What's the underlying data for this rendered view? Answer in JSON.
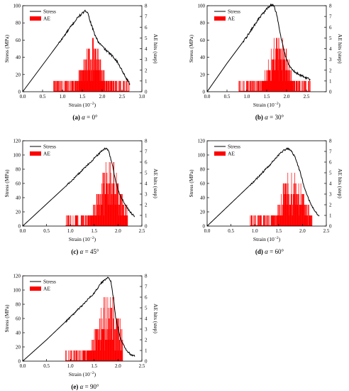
{
  "chart_data": [
    {
      "type": "line",
      "caption": "(a) α = 0°",
      "caption_parts": [
        "(a) ",
        "α",
        " = 0°"
      ],
      "xlabel": "Strain (10",
      "xlabel_sup": "−2",
      "xlabel_end": ")",
      "ylabel": "Stress (MPa)",
      "y2label": "AE hits (step)",
      "xlim": [
        0,
        3.0
      ],
      "ylim": [
        0,
        100
      ],
      "y2lim": [
        0,
        8
      ],
      "xticks": [
        "0.0",
        "0.5",
        "1.0",
        "1.5",
        "2.0",
        "2.5",
        "3.0"
      ],
      "yticks": [
        "0",
        "20",
        "40",
        "60",
        "80",
        "100"
      ],
      "y2ticks": [
        "0",
        "1",
        "2",
        "3",
        "4",
        "5",
        "6",
        "7",
        "8"
      ],
      "legend": [
        "Stress",
        "AE"
      ],
      "series": [
        {
          "name": "Stress",
          "color": "#000000",
          "x": [
            0,
            0.5,
            1.0,
            1.2,
            1.4,
            1.5,
            1.58,
            1.63,
            1.7,
            1.8,
            1.9,
            2.0,
            2.1,
            2.2,
            2.35,
            2.5,
            2.6,
            2.7
          ],
          "y": [
            0,
            31,
            62,
            75,
            87,
            91,
            94,
            93,
            82,
            68,
            58,
            53,
            48,
            44,
            37,
            25,
            16,
            9
          ]
        },
        {
          "name": "AE",
          "color": "#ff0000",
          "x_range": [
            0.78,
            2.68
          ],
          "peak_x": 1.75,
          "max_hits": 4.5
        }
      ]
    },
    {
      "type": "line",
      "caption": "(b) α = 30°",
      "caption_parts": [
        "(b) ",
        "α",
        " = 30°"
      ],
      "xlabel": "Strain (10",
      "xlabel_sup": "−2",
      "xlabel_end": ")",
      "ylabel": "Stress (MPa)",
      "y2label": "AE hits (step)",
      "xlim": [
        0,
        3.0
      ],
      "ylim": [
        0,
        100
      ],
      "y2lim": [
        0,
        8
      ],
      "xticks": [
        "0.0",
        "0.5",
        "1.0",
        "1.5",
        "2.0",
        "2.5"
      ],
      "yticks": [
        "0",
        "20",
        "40",
        "60",
        "80",
        "100"
      ],
      "y2ticks": [
        "0",
        "1",
        "2",
        "3",
        "4",
        "5",
        "6",
        "7",
        "8"
      ],
      "legend": [
        "Stress",
        "AE"
      ],
      "series": [
        {
          "name": "Stress",
          "color": "#000000",
          "x": [
            0,
            0.5,
            1.0,
            1.3,
            1.5,
            1.6,
            1.68,
            1.75,
            1.85,
            1.95,
            2.05,
            2.2,
            2.4,
            2.6
          ],
          "y": [
            0,
            33,
            64,
            85,
            96,
            101,
            100,
            90,
            65,
            45,
            31,
            23,
            18,
            14
          ]
        },
        {
          "name": "AE",
          "color": "#ff0000",
          "x_range": [
            0.8,
            2.6
          ],
          "peak_x": 1.8,
          "max_hits": 5
        }
      ]
    },
    {
      "type": "line",
      "caption": "(c) α = 45°",
      "caption_parts": [
        "(c) ",
        "α",
        " = 45°"
      ],
      "xlabel": "Strain (10",
      "xlabel_sup": "−2",
      "xlabel_end": ")",
      "ylabel": "Stress (MPa)",
      "y2label": "AE hits (step)",
      "xlim": [
        0,
        2.5
      ],
      "ylim": [
        0,
        120
      ],
      "y2lim": [
        0,
        8
      ],
      "xticks": [
        "0.0",
        "0.5",
        "1.0",
        "1.5",
        "2.0",
        "2.5"
      ],
      "yticks": [
        "0",
        "20",
        "40",
        "60",
        "80",
        "100",
        "120"
      ],
      "y2ticks": [
        "0",
        "1",
        "2",
        "3",
        "4",
        "5",
        "6",
        "7",
        "8"
      ],
      "legend": [
        "Stress",
        "AE"
      ],
      "series": [
        {
          "name": "Stress",
          "color": "#000000",
          "x": [
            0,
            0.5,
            1.0,
            1.3,
            1.5,
            1.65,
            1.75,
            1.8,
            1.88,
            1.95,
            2.05,
            2.15,
            2.25,
            2.35
          ],
          "y": [
            0,
            31,
            62,
            82,
            95,
            105,
            110,
            106,
            87,
            62,
            42,
            30,
            20,
            13
          ]
        },
        {
          "name": "AE",
          "color": "#ff0000",
          "x_range": [
            0.9,
            2.2
          ],
          "peak_x": 1.83,
          "max_hits": 6
        }
      ]
    },
    {
      "type": "line",
      "caption": "(d) α = 60°",
      "caption_parts": [
        "(d) ",
        "α",
        " = 60°"
      ],
      "xlabel": "Strain (10",
      "xlabel_sup": "−2",
      "xlabel_end": ")",
      "ylabel": "Stress (MPa)",
      "y2label": "AE hits (step)",
      "xlim": [
        0,
        2.5
      ],
      "ylim": [
        0,
        120
      ],
      "y2lim": [
        0,
        8
      ],
      "xticks": [
        "0.0",
        "0.5",
        "1.0",
        "1.5",
        "2.0",
        "2.5"
      ],
      "yticks": [
        "0",
        "20",
        "40",
        "60",
        "80",
        "100",
        "120"
      ],
      "y2ticks": [
        "0",
        "1",
        "2",
        "3",
        "4",
        "5",
        "6",
        "7",
        "8"
      ],
      "legend": [
        "Stress",
        "AE"
      ],
      "series": [
        {
          "name": "Stress",
          "color": "#000000",
          "x": [
            0,
            0.5,
            1.0,
            1.3,
            1.5,
            1.6,
            1.68,
            1.75,
            1.85,
            1.95,
            2.05,
            2.15,
            2.25,
            2.35
          ],
          "y": [
            0,
            32,
            64,
            85,
            100,
            106,
            109,
            107,
            96,
            76,
            52,
            35,
            22,
            14
          ]
        },
        {
          "name": "AE",
          "color": "#ff0000",
          "x_range": [
            0.9,
            2.2
          ],
          "peak_x": 1.8,
          "max_hits": 5
        }
      ]
    },
    {
      "type": "line",
      "caption": "(e) α = 90°",
      "caption_parts": [
        "(e) ",
        "α",
        " = 90°"
      ],
      "xlabel": "Strain (10",
      "xlabel_sup": "−2",
      "xlabel_end": ")",
      "ylabel": "Stress (MPa)",
      "y2label": "AE hits (step)",
      "xlim": [
        0,
        2.5
      ],
      "ylim": [
        0,
        120
      ],
      "y2lim": [
        0,
        8
      ],
      "xticks": [
        "0.0",
        "0.5",
        "1.0",
        "1.5",
        "2.0",
        "2.5"
      ],
      "yticks": [
        "0",
        "20",
        "40",
        "60",
        "80",
        "100",
        "120"
      ],
      "y2ticks": [
        "0",
        "1",
        "2",
        "3",
        "4",
        "5",
        "6",
        "7",
        "8"
      ],
      "legend": [
        "Stress",
        "AE"
      ],
      "series": [
        {
          "name": "Stress",
          "color": "#000000",
          "x": [
            0,
            0.5,
            1.0,
            1.3,
            1.5,
            1.65,
            1.75,
            1.8,
            1.85,
            1.9,
            1.95,
            2.05,
            2.15,
            2.25,
            2.35
          ],
          "y": [
            0,
            30,
            62,
            82,
            96,
            110,
            116,
            118,
            112,
            90,
            62,
            32,
            18,
            10,
            7
          ]
        },
        {
          "name": "AE",
          "color": "#ff0000",
          "x_range": [
            0.9,
            2.1
          ],
          "peak_x": 1.8,
          "max_hits": 6
        }
      ]
    }
  ]
}
